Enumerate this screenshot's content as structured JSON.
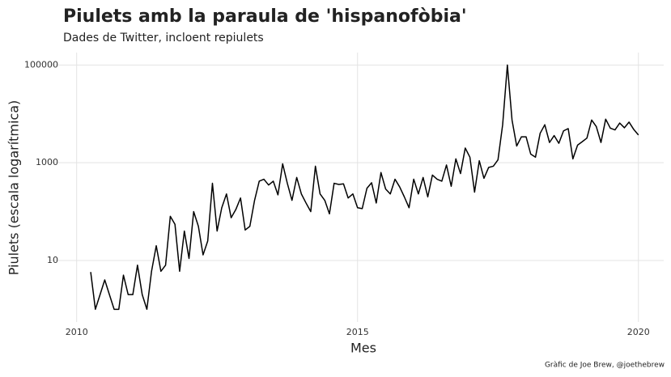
{
  "chart_data": {
    "type": "line",
    "title": "Piulets amb la paraula de 'hispanofòbia'",
    "subtitle": "Dades de Twitter, incloent repiulets",
    "xlabel": "Mes",
    "ylabel": "Piulets (escala logarítmica)",
    "caption": "Gràfic de Joe Brew, @joethebrew",
    "log_y": true,
    "grid": true,
    "xlim": [
      2009.5,
      2020.45
    ],
    "ylim": [
      0.55,
      180000
    ],
    "xticks": [
      2010,
      2015,
      2020
    ],
    "yticks": [
      10,
      1000,
      100000
    ],
    "x": [
      2010.25,
      2010.333,
      2010.417,
      2010.5,
      2010.583,
      2010.667,
      2010.75,
      2010.833,
      2010.917,
      2011,
      2011.083,
      2011.167,
      2011.25,
      2011.333,
      2011.417,
      2011.5,
      2011.583,
      2011.667,
      2011.75,
      2011.833,
      2011.917,
      2012,
      2012.083,
      2012.167,
      2012.25,
      2012.333,
      2012.417,
      2012.5,
      2012.583,
      2012.667,
      2012.75,
      2012.833,
      2012.917,
      2013,
      2013.083,
      2013.167,
      2013.25,
      2013.333,
      2013.417,
      2013.5,
      2013.583,
      2013.667,
      2013.75,
      2013.833,
      2013.917,
      2014,
      2014.083,
      2014.167,
      2014.25,
      2014.333,
      2014.417,
      2014.5,
      2014.583,
      2014.667,
      2014.75,
      2014.833,
      2014.917,
      2015,
      2015.083,
      2015.167,
      2015.25,
      2015.333,
      2015.417,
      2015.5,
      2015.583,
      2015.667,
      2015.75,
      2015.833,
      2015.917,
      2016,
      2016.083,
      2016.167,
      2016.25,
      2016.333,
      2016.417,
      2016.5,
      2016.583,
      2016.667,
      2016.75,
      2016.833,
      2016.917,
      2017,
      2017.083,
      2017.167,
      2017.25,
      2017.333,
      2017.417,
      2017.5,
      2017.583,
      2017.667,
      2017.75,
      2017.833,
      2017.917,
      2018,
      2018.083,
      2018.167,
      2018.25,
      2018.333,
      2018.417,
      2018.5,
      2018.583,
      2018.667,
      2018.75,
      2018.833,
      2018.917,
      2019,
      2019.083,
      2019.167,
      2019.25,
      2019.333,
      2019.417,
      2019.5,
      2019.583,
      2019.667,
      2019.75,
      2019.833,
      2019.917,
      2020
    ],
    "series": [
      {
        "name": "Piulets",
        "color": "#000000",
        "values": [
          5.8,
          1,
          2,
          4,
          2,
          1,
          1,
          5,
          2,
          2,
          8,
          2,
          1,
          6,
          20,
          6,
          8,
          80,
          55,
          6,
          40,
          11,
          100,
          50,
          13,
          25,
          380,
          40,
          120,
          230,
          75,
          110,
          190,
          42,
          50,
          170,
          420,
          460,
          350,
          420,
          220,
          950,
          380,
          170,
          500,
          230,
          150,
          100,
          850,
          230,
          170,
          90,
          380,
          360,
          370,
          190,
          230,
          120,
          115,
          300,
          390,
          150,
          630,
          290,
          230,
          460,
          320,
          200,
          120,
          460,
          230,
          500,
          200,
          560,
          460,
          420,
          900,
          330,
          1200,
          600,
          2000,
          1300,
          250,
          1100,
          480,
          800,
          850,
          1150,
          6000,
          100000,
          7500,
          2200,
          3400,
          3400,
          1500,
          1300,
          4000,
          6000,
          2600,
          3600,
          2500,
          4500,
          5000,
          1200,
          2300,
          2700,
          3200,
          7500,
          5500,
          2600,
          7800,
          5100,
          4700,
          6500,
          5200,
          6800,
          4800,
          3700
        ]
      }
    ]
  }
}
